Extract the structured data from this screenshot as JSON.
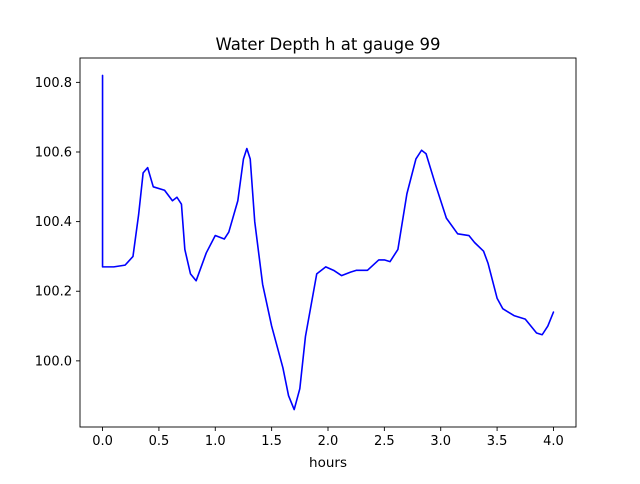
{
  "chart_data": {
    "type": "line",
    "title": "Water Depth h at gauge 99",
    "xlabel": "hours",
    "ylabel": "",
    "xlim": [
      -0.2,
      4.2
    ],
    "ylim": [
      99.81,
      100.87
    ],
    "xticks": [
      0.0,
      0.5,
      1.0,
      1.5,
      2.0,
      2.5,
      3.0,
      3.5,
      4.0
    ],
    "xtick_labels": [
      "0.0",
      "0.5",
      "1.0",
      "1.5",
      "2.0",
      "2.5",
      "3.0",
      "3.5",
      "4.0"
    ],
    "yticks": [
      100.0,
      100.2,
      100.4,
      100.6,
      100.8
    ],
    "ytick_labels": [
      "100.0",
      "100.2",
      "100.4",
      "100.6",
      "100.8"
    ],
    "grid": false,
    "series": [
      {
        "color": "#0000ff",
        "x": [
          0.0,
          0.0,
          0.1,
          0.2,
          0.27,
          0.32,
          0.36,
          0.4,
          0.45,
          0.55,
          0.62,
          0.66,
          0.7,
          0.73,
          0.78,
          0.83,
          0.92,
          1.0,
          1.08,
          1.12,
          1.2,
          1.25,
          1.28,
          1.31,
          1.35,
          1.42,
          1.5,
          1.6,
          1.65,
          1.7,
          1.75,
          1.8,
          1.9,
          1.98,
          2.05,
          2.12,
          2.2,
          2.25,
          2.35,
          2.45,
          2.5,
          2.55,
          2.62,
          2.7,
          2.78,
          2.83,
          2.87,
          2.95,
          3.05,
          3.15,
          3.25,
          3.3,
          3.38,
          3.42,
          3.5,
          3.55,
          3.65,
          3.75,
          3.85,
          3.9,
          3.95,
          4.0
        ],
        "y": [
          100.82,
          100.27,
          100.27,
          100.275,
          100.3,
          100.42,
          100.54,
          100.555,
          100.5,
          100.49,
          100.46,
          100.47,
          100.45,
          100.32,
          100.25,
          100.23,
          100.31,
          100.36,
          100.35,
          100.37,
          100.46,
          100.58,
          100.61,
          100.58,
          100.4,
          100.22,
          100.1,
          99.98,
          99.9,
          99.86,
          99.92,
          100.07,
          100.25,
          100.27,
          100.26,
          100.245,
          100.255,
          100.26,
          100.26,
          100.29,
          100.29,
          100.285,
          100.32,
          100.48,
          100.58,
          100.605,
          100.595,
          100.51,
          100.41,
          100.365,
          100.36,
          100.34,
          100.315,
          100.28,
          100.18,
          100.15,
          100.13,
          100.12,
          100.08,
          100.075,
          100.1,
          100.14
        ]
      }
    ]
  }
}
